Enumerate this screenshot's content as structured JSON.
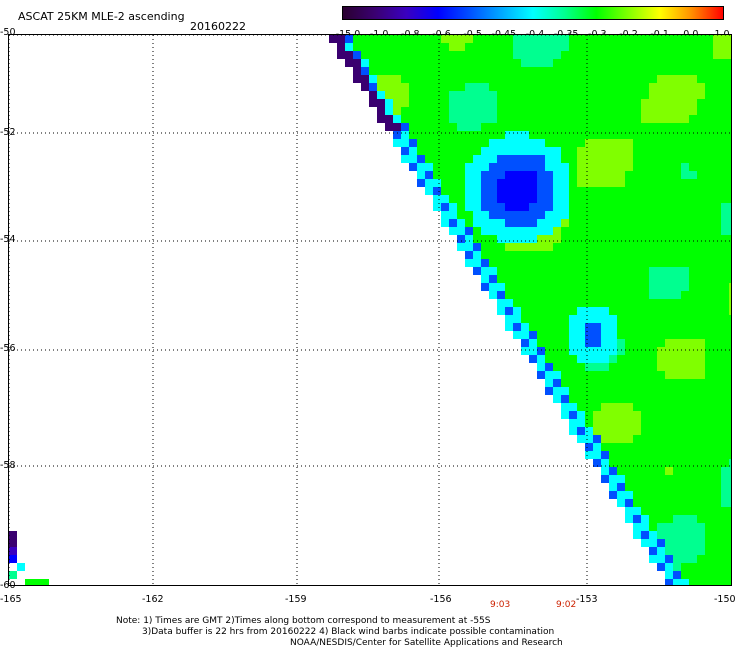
{
  "header": {
    "title": "ASCAT 25KM MLE-2 ascending",
    "date": "20160222"
  },
  "colorbar": {
    "labels": [
      "-15.0",
      "-1.0",
      "-0.8",
      "-0.6",
      "-0.5",
      "-0.45",
      "-0.4",
      "-0.35",
      "-0.3",
      "-0.2",
      "-0.1",
      "0.0",
      "1.0"
    ],
    "colors": [
      "#2a0030",
      "#3a0070",
      "#3a00c0",
      "#0000ff",
      "#0050ff",
      "#00a8ff",
      "#00ffff",
      "#00ff90",
      "#00ff00",
      "#80ff00",
      "#ffff00",
      "#ff9000",
      "#ff0000"
    ]
  },
  "map": {
    "lat_labels": [
      "-50",
      "-52",
      "-54",
      "-56",
      "-58",
      "-60"
    ],
    "lon_labels": [
      "-165",
      "-162",
      "-159",
      "-156",
      "-153",
      "-150"
    ],
    "time_labels": [
      "9:03",
      "9:02"
    ],
    "grid": true
  },
  "notes": {
    "line1": "Note: 1) Times are GMT 2)Times along bottom correspond to measurement at -55S",
    "line2": "3)Data buffer is 22 hrs from 20160222 4) Black wind barbs indicate possible contamination",
    "line3": "NOAA/NESDIS/Center for Satellite Applications and Research"
  }
}
